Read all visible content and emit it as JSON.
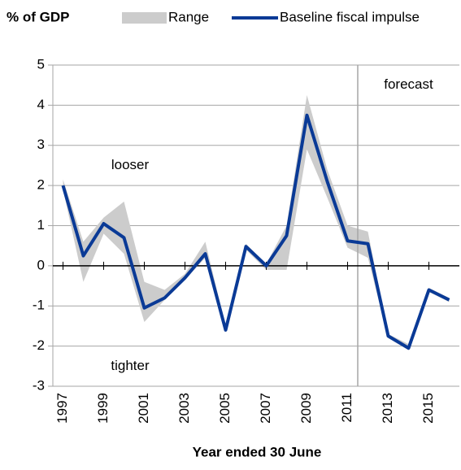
{
  "chart_data": {
    "type": "line",
    "y_label": "% of GDP",
    "x_label": "Year ended 30 June",
    "x": [
      1997,
      1998,
      1999,
      2000,
      2001,
      2002,
      2003,
      2004,
      2005,
      2006,
      2007,
      2008,
      2009,
      2010,
      2011,
      2012,
      2013,
      2014,
      2015,
      2016
    ],
    "series": [
      {
        "name": "Range",
        "color": "#cccccc",
        "low": [
          1.9,
          -0.4,
          0.8,
          0.3,
          -1.4,
          -0.85,
          -0.35,
          0.2,
          -1.65,
          0.4,
          -0.1,
          -0.1,
          2.9,
          1.7,
          0.45,
          0.2,
          -1.8,
          -2.1,
          -0.65,
          -0.9
        ],
        "high": [
          2.15,
          0.6,
          1.2,
          1.6,
          -0.4,
          -0.6,
          -0.2,
          0.6,
          -1.5,
          0.55,
          0.05,
          1.0,
          4.25,
          2.4,
          1.0,
          0.85,
          -1.7,
          -1.95,
          -0.55,
          -0.8
        ]
      },
      {
        "name": "Baseline fiscal impulse",
        "color": "#0a3a96",
        "values": [
          2.0,
          0.25,
          1.05,
          0.7,
          -1.05,
          -0.8,
          -0.3,
          0.3,
          -1.6,
          0.48,
          0.0,
          0.75,
          3.75,
          2.1,
          0.62,
          0.55,
          -1.75,
          -2.05,
          -0.6,
          -0.85
        ]
      }
    ],
    "xlim": [
      1996.5,
      2016.5
    ],
    "xticks": [
      1997,
      1999,
      2001,
      2003,
      2005,
      2007,
      2009,
      2011,
      2013,
      2015
    ],
    "ylim": [
      -3,
      5
    ],
    "yticks": [
      -3,
      -2,
      -1,
      0,
      1,
      2,
      3,
      4,
      5
    ],
    "grid": true,
    "annotations": [
      {
        "text": "looser",
        "x": 2000.3,
        "y": 2.5
      },
      {
        "text": "tighter",
        "x": 2000.3,
        "y": -2.5
      },
      {
        "text": "forecast",
        "x": 2014.0,
        "y": 4.5
      }
    ],
    "forecast_x": 2011.5
  }
}
